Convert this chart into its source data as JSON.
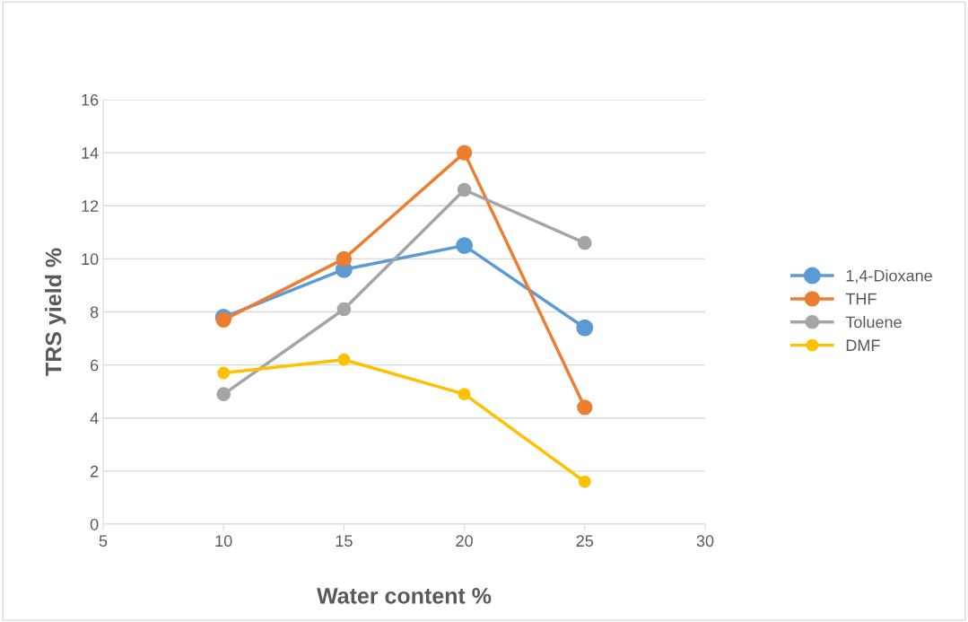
{
  "chart_data": {
    "type": "line",
    "xlabel": "Water content %",
    "ylabel": "TRS yield %",
    "x": [
      10,
      15,
      20,
      25
    ],
    "series": [
      {
        "name": "1,4-Dioxane",
        "color": "#5b9bd5",
        "values": [
          7.8,
          9.6,
          10.5,
          7.4
        ]
      },
      {
        "name": "THF",
        "color": "#ed7d31",
        "values": [
          7.7,
          10.0,
          14.0,
          4.4
        ]
      },
      {
        "name": "Toluene",
        "color": "#a5a5a5",
        "values": [
          4.9,
          8.1,
          12.6,
          10.6
        ]
      },
      {
        "name": "DMF",
        "color": "#ffc000",
        "values": [
          5.7,
          6.2,
          4.9,
          1.6
        ]
      }
    ],
    "xlim": [
      5,
      30
    ],
    "xticks": [
      5,
      10,
      15,
      20,
      25,
      30
    ],
    "ylim": [
      0,
      16
    ],
    "yticks": [
      0,
      2,
      4,
      6,
      8,
      10,
      12,
      14,
      16
    ],
    "grid": "y",
    "legend": "right",
    "marker": "circle",
    "line_style": "solid"
  }
}
